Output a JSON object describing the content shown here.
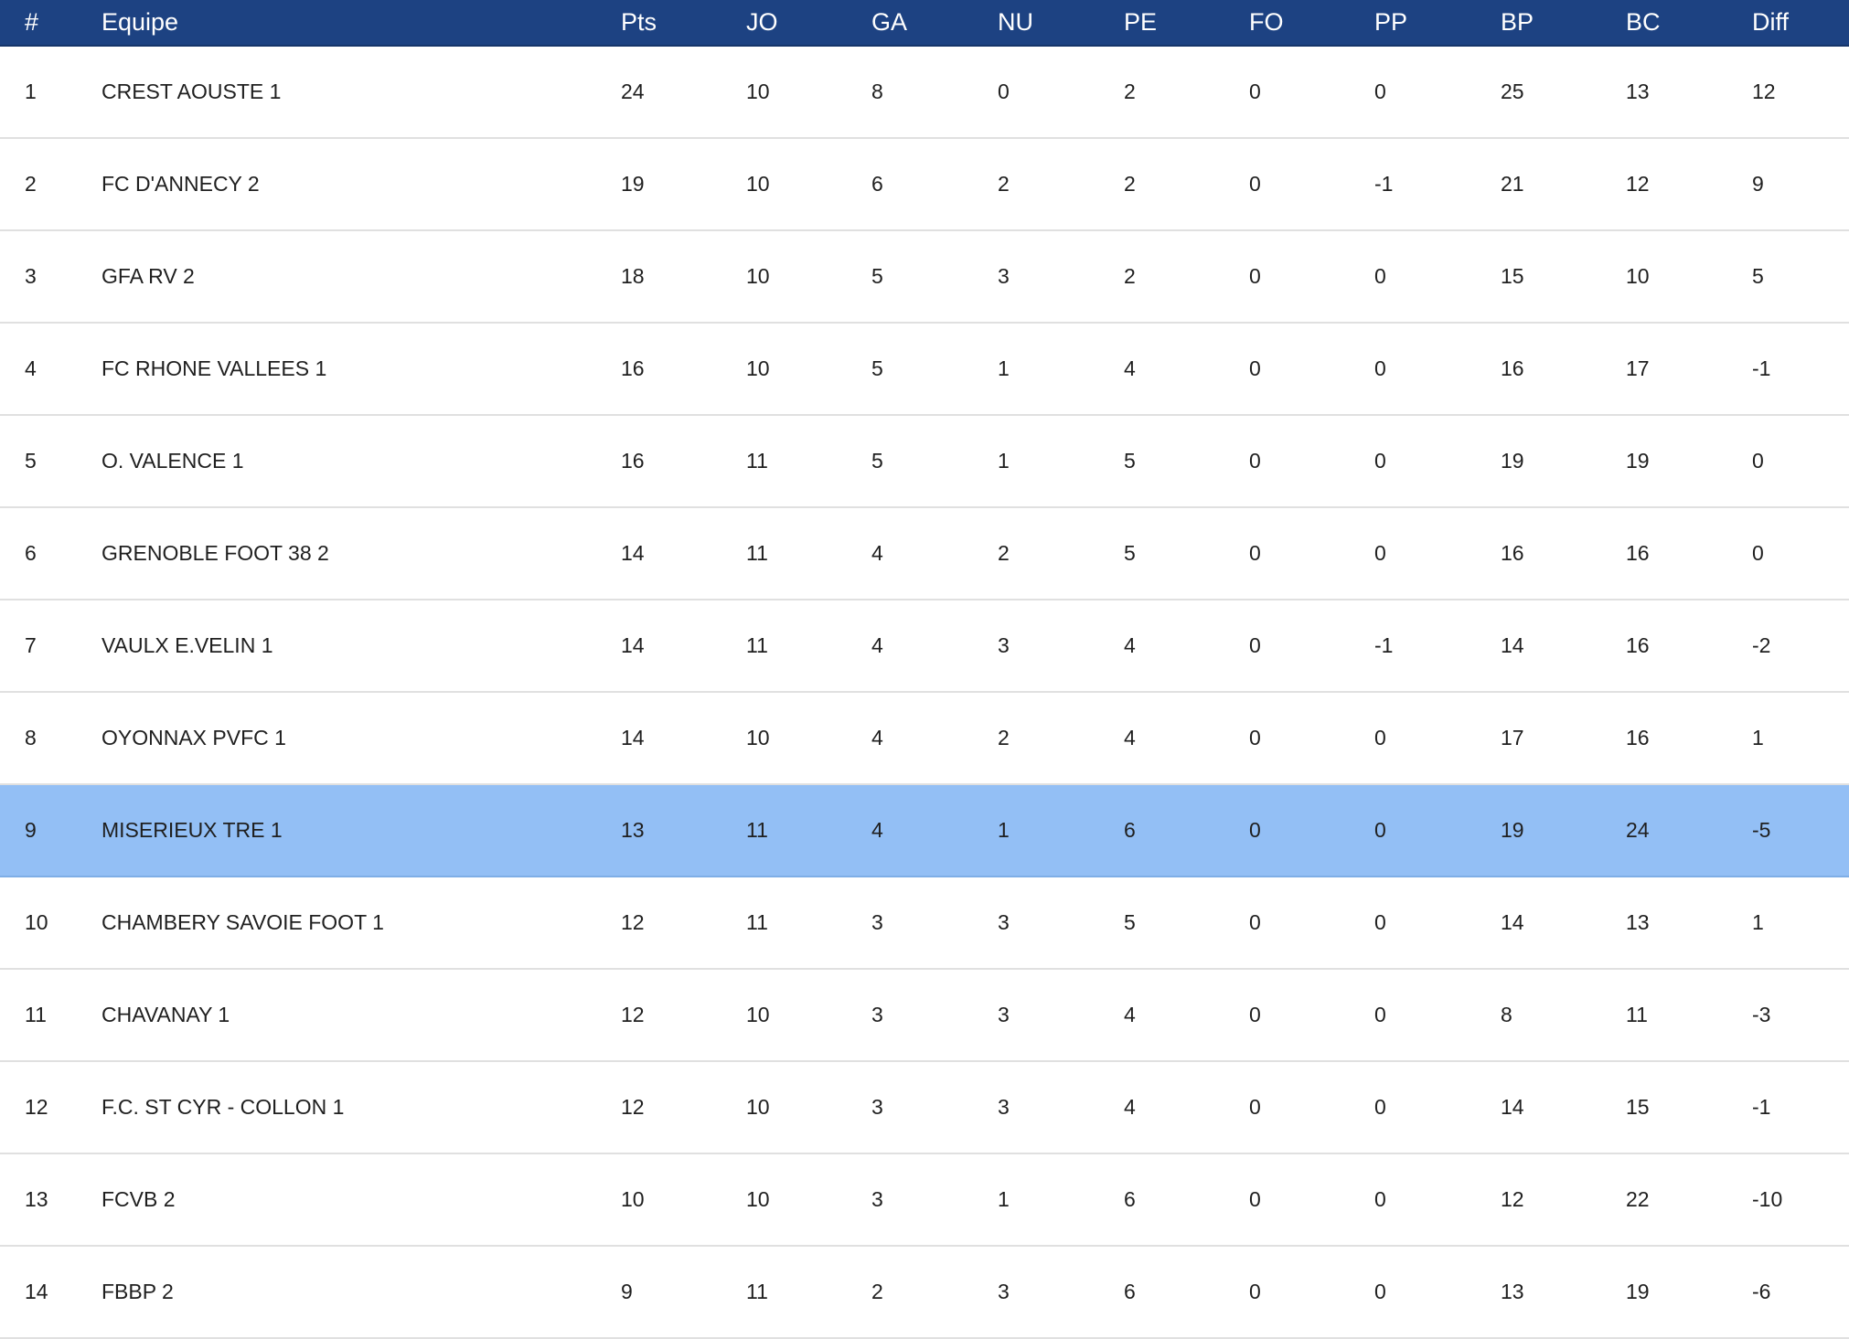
{
  "table": {
    "columns": [
      "#",
      "Equipe",
      "Pts",
      "JO",
      "GA",
      "NU",
      "PE",
      "FO",
      "PP",
      "BP",
      "BC",
      "Diff"
    ],
    "highlight_color": "#93bff5",
    "header_color": "#1d4282",
    "highlighted_rank": "9",
    "rows": [
      {
        "rank": "1",
        "team": "CREST AOUSTE 1",
        "pts": "24",
        "jo": "10",
        "ga": "8",
        "nu": "0",
        "pe": "2",
        "fo": "0",
        "pp": "0",
        "bp": "25",
        "bc": "13",
        "diff": "12"
      },
      {
        "rank": "2",
        "team": "FC D'ANNECY 2",
        "pts": "19",
        "jo": "10",
        "ga": "6",
        "nu": "2",
        "pe": "2",
        "fo": "0",
        "pp": "-1",
        "bp": "21",
        "bc": "12",
        "diff": "9"
      },
      {
        "rank": "3",
        "team": "GFA RV 2",
        "pts": "18",
        "jo": "10",
        "ga": "5",
        "nu": "3",
        "pe": "2",
        "fo": "0",
        "pp": "0",
        "bp": "15",
        "bc": "10",
        "diff": "5"
      },
      {
        "rank": "4",
        "team": "FC RHONE VALLEES 1",
        "pts": "16",
        "jo": "10",
        "ga": "5",
        "nu": "1",
        "pe": "4",
        "fo": "0",
        "pp": "0",
        "bp": "16",
        "bc": "17",
        "diff": "-1"
      },
      {
        "rank": "5",
        "team": "O. VALENCE 1",
        "pts": "16",
        "jo": "11",
        "ga": "5",
        "nu": "1",
        "pe": "5",
        "fo": "0",
        "pp": "0",
        "bp": "19",
        "bc": "19",
        "diff": "0"
      },
      {
        "rank": "6",
        "team": "GRENOBLE FOOT 38 2",
        "pts": "14",
        "jo": "11",
        "ga": "4",
        "nu": "2",
        "pe": "5",
        "fo": "0",
        "pp": "0",
        "bp": "16",
        "bc": "16",
        "diff": "0"
      },
      {
        "rank": "7",
        "team": "VAULX E.VELIN 1",
        "pts": "14",
        "jo": "11",
        "ga": "4",
        "nu": "3",
        "pe": "4",
        "fo": "0",
        "pp": "-1",
        "bp": "14",
        "bc": "16",
        "diff": "-2"
      },
      {
        "rank": "8",
        "team": "OYONNAX PVFC 1",
        "pts": "14",
        "jo": "10",
        "ga": "4",
        "nu": "2",
        "pe": "4",
        "fo": "0",
        "pp": "0",
        "bp": "17",
        "bc": "16",
        "diff": "1"
      },
      {
        "rank": "9",
        "team": "MISERIEUX TRE 1",
        "pts": "13",
        "jo": "11",
        "ga": "4",
        "nu": "1",
        "pe": "6",
        "fo": "0",
        "pp": "0",
        "bp": "19",
        "bc": "24",
        "diff": "-5"
      },
      {
        "rank": "10",
        "team": "CHAMBERY SAVOIE FOOT 1",
        "pts": "12",
        "jo": "11",
        "ga": "3",
        "nu": "3",
        "pe": "5",
        "fo": "0",
        "pp": "0",
        "bp": "14",
        "bc": "13",
        "diff": "1"
      },
      {
        "rank": "11",
        "team": "CHAVANAY 1",
        "pts": "12",
        "jo": "10",
        "ga": "3",
        "nu": "3",
        "pe": "4",
        "fo": "0",
        "pp": "0",
        "bp": "8",
        "bc": "11",
        "diff": "-3"
      },
      {
        "rank": "12",
        "team": "F.C. ST CYR - COLLON 1",
        "pts": "12",
        "jo": "10",
        "ga": "3",
        "nu": "3",
        "pe": "4",
        "fo": "0",
        "pp": "0",
        "bp": "14",
        "bc": "15",
        "diff": "-1"
      },
      {
        "rank": "13",
        "team": "FCVB 2",
        "pts": "10",
        "jo": "10",
        "ga": "3",
        "nu": "1",
        "pe": "6",
        "fo": "0",
        "pp": "0",
        "bp": "12",
        "bc": "22",
        "diff": "-10"
      },
      {
        "rank": "14",
        "team": "FBBP 2",
        "pts": "9",
        "jo": "11",
        "ga": "2",
        "nu": "3",
        "pe": "6",
        "fo": "0",
        "pp": "0",
        "bp": "13",
        "bc": "19",
        "diff": "-6"
      }
    ]
  }
}
